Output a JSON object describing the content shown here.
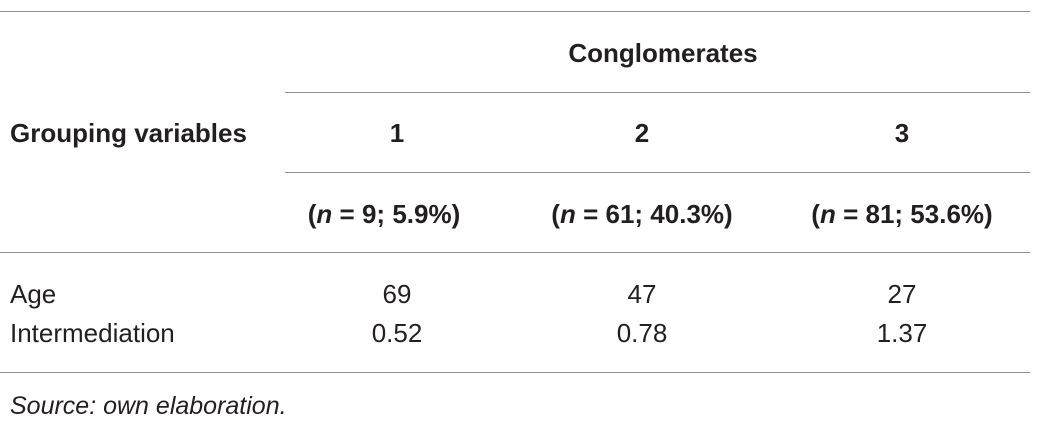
{
  "table": {
    "spanning_header": "Conglomerates",
    "row_header_label": "Grouping variables",
    "columns": [
      {
        "number": "1",
        "n_value": "9",
        "pct": "5.9%"
      },
      {
        "number": "2",
        "n_value": "61",
        "pct": "40.3%"
      },
      {
        "number": "3",
        "n_value": "81",
        "pct": "53.6%"
      }
    ],
    "n_symbol": "n",
    "rows": [
      {
        "label": "Age",
        "values": [
          "69",
          "47",
          "27"
        ]
      },
      {
        "label": "Intermediation",
        "values": [
          "0.52",
          "0.78",
          "1.37"
        ]
      }
    ],
    "source_note": "Source: own elaboration."
  }
}
